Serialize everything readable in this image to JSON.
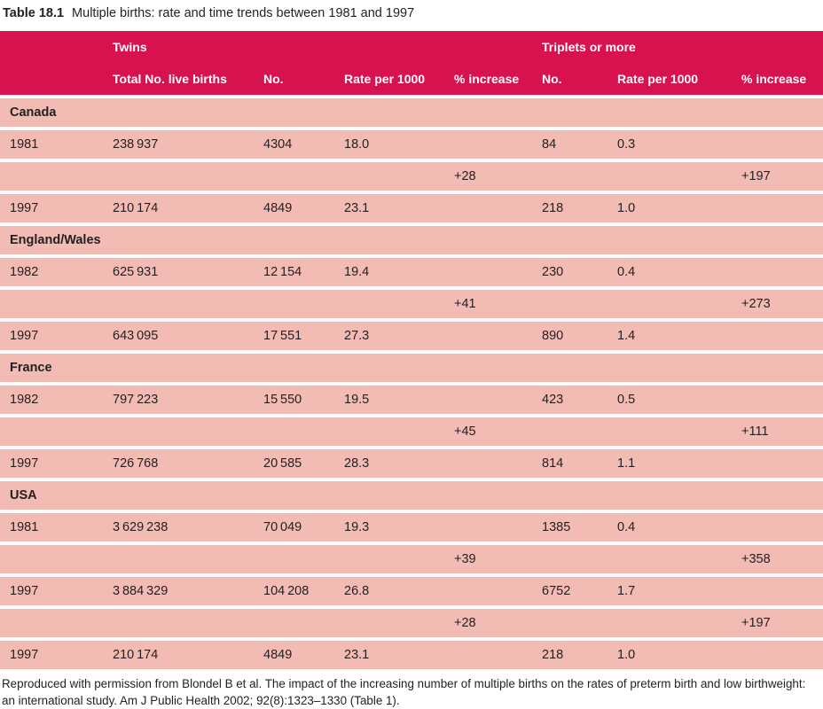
{
  "title": {
    "number": "Table 18.1",
    "caption": "Multiple births: rate and time trends between 1981 and 1997"
  },
  "colors": {
    "header_bg": "#d8124f",
    "row_bg": "#f2bbb3",
    "header_text": "#ffffff",
    "body_text": "#231f20",
    "row_separator": "#ffffff"
  },
  "table": {
    "group_headers": [
      {
        "label": "",
        "colspan": 1,
        "name": "group-header-empty"
      },
      {
        "label": "Twins",
        "colspan": 4,
        "name": "group-header-twins"
      },
      {
        "label": "Triplets or more",
        "colspan": 3,
        "name": "group-header-triplets"
      }
    ],
    "column_headers": [
      "",
      "Total No. live births",
      "No.",
      "Rate per 1000",
      "% increase",
      "No.",
      "Rate per 1000",
      "% increase"
    ],
    "rows": [
      {
        "type": "section",
        "label": "Canada"
      },
      {
        "type": "data",
        "cells": [
          "1981",
          "238 937",
          "4304",
          "18.0",
          "",
          "84",
          "0.3",
          ""
        ]
      },
      {
        "type": "data",
        "cells": [
          "",
          "",
          "",
          "",
          "+28",
          "",
          "",
          "+197"
        ]
      },
      {
        "type": "data",
        "cells": [
          "1997",
          "210 174",
          "4849",
          "23.1",
          "",
          "218",
          "1.0",
          ""
        ]
      },
      {
        "type": "section",
        "label": "England/Wales"
      },
      {
        "type": "data",
        "cells": [
          "1982",
          "625 931",
          "12 154",
          "19.4",
          "",
          "230",
          "0.4",
          ""
        ]
      },
      {
        "type": "data",
        "cells": [
          "",
          "",
          "",
          "",
          "+41",
          "",
          "",
          "+273"
        ]
      },
      {
        "type": "data",
        "cells": [
          "1997",
          "643 095",
          "17 551",
          "27.3",
          "",
          "890",
          "1.4",
          ""
        ]
      },
      {
        "type": "section",
        "label": "France"
      },
      {
        "type": "data",
        "cells": [
          "1982",
          "797 223",
          "15 550",
          "19.5",
          "",
          "423",
          "0.5",
          ""
        ]
      },
      {
        "type": "data",
        "cells": [
          "",
          "",
          "",
          "",
          "+45",
          "",
          "",
          "+111"
        ]
      },
      {
        "type": "data",
        "cells": [
          "1997",
          "726 768",
          "20 585",
          "28.3",
          "",
          "814",
          "1.1",
          ""
        ]
      },
      {
        "type": "section",
        "label": "USA"
      },
      {
        "type": "data",
        "cells": [
          "1981",
          "3 629 238",
          "70 049",
          "19.3",
          "",
          "1385",
          "0.4",
          ""
        ]
      },
      {
        "type": "data",
        "cells": [
          "",
          "",
          "",
          "",
          "+39",
          "",
          "",
          "+358"
        ]
      },
      {
        "type": "data",
        "cells": [
          "1997",
          "3 884 329",
          "104 208",
          "26.8",
          "",
          "6752",
          "1.7",
          ""
        ]
      },
      {
        "type": "data",
        "cells": [
          "",
          "",
          "",
          "",
          "+28",
          "",
          "",
          "+197"
        ]
      },
      {
        "type": "data",
        "cells": [
          "1997",
          "210 174",
          "4849",
          "23.1",
          "",
          "218",
          "1.0",
          ""
        ]
      }
    ]
  },
  "footnote": "Reproduced with permission from Blondel B et al. The impact of the increasing number of multiple births on the rates of preterm birth and low birthweight: an international study. Am J Public Health 2002; 92(8):1323–1330 (Table 1)."
}
